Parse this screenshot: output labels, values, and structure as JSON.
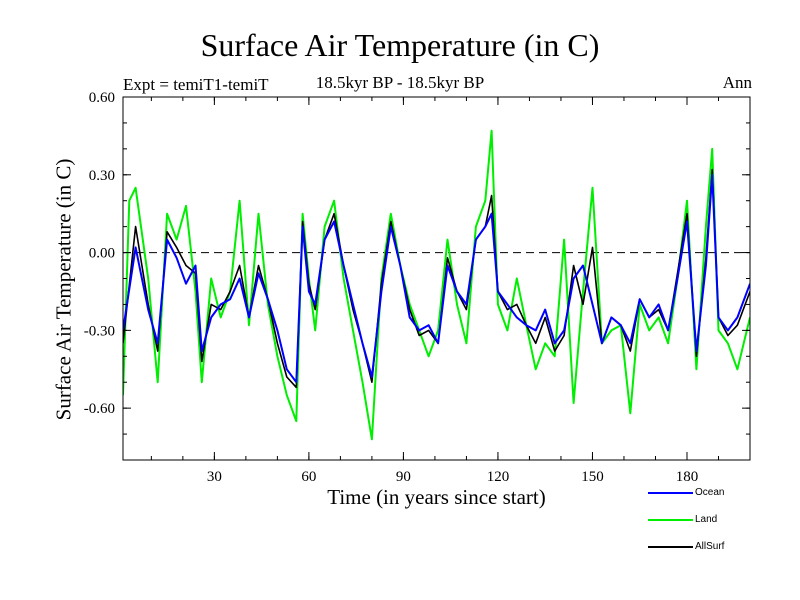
{
  "chart_data": {
    "type": "line",
    "title": "Surface Air Temperature (in C)",
    "subtitle": "18.5kyr BP - 18.5kyr BP",
    "expt_label": "Expt = temiT1-temiT",
    "season_label": "Ann",
    "xlabel": "Time (in years since start)",
    "ylabel": "Surface Air Temperature (in C)",
    "xlim": [
      1,
      200
    ],
    "ylim": [
      -0.8,
      0.6
    ],
    "xticks": [
      30,
      60,
      90,
      120,
      150,
      180
    ],
    "xtick_labels": [
      "30",
      "60",
      "90",
      "120",
      "150",
      "180"
    ],
    "yticks": [
      0.6,
      0.3,
      0.0,
      -0.3,
      -0.6
    ],
    "ytick_labels": [
      "0.60",
      "0.30",
      "0.00",
      "-0.30",
      "-0.60"
    ],
    "zero_line": 0.0,
    "series": [
      {
        "name": "Ocean",
        "color": "#0000ff",
        "x": [
          1,
          5,
          9,
          12,
          15,
          18,
          21,
          24,
          26,
          29,
          32,
          35,
          38,
          41,
          44,
          47,
          50,
          53,
          56,
          58,
          60,
          62,
          65,
          68,
          71,
          74,
          77,
          80,
          83,
          86,
          89,
          92,
          95,
          98,
          101,
          104,
          107,
          110,
          113,
          116,
          118,
          120,
          123,
          126,
          129,
          132,
          135,
          138,
          141,
          144,
          147,
          150,
          153,
          156,
          159,
          162,
          165,
          168,
          171,
          174,
          177,
          180,
          183,
          186,
          188,
          190,
          193,
          196,
          200
        ],
        "values": [
          -0.3,
          0.02,
          -0.22,
          -0.35,
          0.05,
          -0.02,
          -0.12,
          -0.05,
          -0.38,
          -0.25,
          -0.2,
          -0.18,
          -0.1,
          -0.25,
          -0.08,
          -0.18,
          -0.3,
          -0.45,
          -0.5,
          0.1,
          -0.15,
          -0.2,
          0.05,
          0.12,
          -0.05,
          -0.2,
          -0.35,
          -0.48,
          -0.15,
          0.1,
          -0.05,
          -0.25,
          -0.3,
          -0.28,
          -0.35,
          -0.05,
          -0.15,
          -0.2,
          0.05,
          0.1,
          0.15,
          -0.15,
          -0.2,
          -0.25,
          -0.28,
          -0.3,
          -0.22,
          -0.35,
          -0.3,
          -0.1,
          -0.05,
          -0.2,
          -0.35,
          -0.25,
          -0.28,
          -0.35,
          -0.18,
          -0.25,
          -0.2,
          -0.3,
          -0.1,
          0.12,
          -0.38,
          -0.05,
          0.3,
          -0.25,
          -0.3,
          -0.25,
          -0.12
        ]
      },
      {
        "name": "Land",
        "color": "#00ee00",
        "x": [
          1,
          3,
          5,
          9,
          12,
          15,
          18,
          21,
          24,
          26,
          29,
          32,
          35,
          38,
          41,
          44,
          47,
          50,
          53,
          56,
          58,
          60,
          62,
          65,
          68,
          71,
          74,
          77,
          80,
          83,
          86,
          89,
          92,
          95,
          98,
          101,
          104,
          107,
          110,
          113,
          116,
          118,
          120,
          123,
          126,
          129,
          132,
          135,
          138,
          141,
          144,
          147,
          150,
          153,
          156,
          159,
          162,
          165,
          168,
          171,
          174,
          177,
          180,
          183,
          186,
          188,
          190,
          193,
          196,
          200
        ],
        "values": [
          -0.55,
          0.2,
          0.25,
          -0.1,
          -0.5,
          0.15,
          0.05,
          0.18,
          -0.15,
          -0.5,
          -0.1,
          -0.25,
          -0.15,
          0.2,
          -0.28,
          0.15,
          -0.2,
          -0.4,
          -0.55,
          -0.65,
          0.15,
          -0.1,
          -0.3,
          0.1,
          0.2,
          -0.1,
          -0.3,
          -0.5,
          -0.72,
          -0.1,
          0.15,
          -0.05,
          -0.2,
          -0.3,
          -0.4,
          -0.3,
          0.05,
          -0.2,
          -0.35,
          0.1,
          0.2,
          0.47,
          -0.2,
          -0.3,
          -0.1,
          -0.28,
          -0.45,
          -0.35,
          -0.4,
          0.05,
          -0.58,
          -0.15,
          0.25,
          -0.35,
          -0.3,
          -0.28,
          -0.62,
          -0.2,
          -0.3,
          -0.25,
          -0.35,
          -0.1,
          0.2,
          -0.45,
          0.1,
          0.4,
          -0.3,
          -0.35,
          -0.45,
          -0.25
        ]
      },
      {
        "name": "AllSurf",
        "color": "#000000",
        "x": [
          1,
          5,
          9,
          12,
          15,
          18,
          21,
          24,
          26,
          29,
          32,
          35,
          38,
          41,
          44,
          47,
          50,
          53,
          56,
          58,
          60,
          62,
          65,
          68,
          71,
          74,
          77,
          80,
          83,
          86,
          89,
          92,
          95,
          98,
          101,
          104,
          107,
          110,
          113,
          116,
          118,
          120,
          123,
          126,
          129,
          132,
          135,
          138,
          141,
          144,
          147,
          150,
          153,
          156,
          159,
          162,
          165,
          168,
          171,
          174,
          177,
          180,
          183,
          186,
          188,
          190,
          193,
          196,
          200
        ],
        "values": [
          -0.35,
          0.1,
          -0.2,
          -0.38,
          0.08,
          0.02,
          -0.05,
          -0.08,
          -0.42,
          -0.2,
          -0.22,
          -0.15,
          -0.05,
          -0.25,
          -0.05,
          -0.18,
          -0.35,
          -0.48,
          -0.52,
          0.12,
          -0.12,
          -0.22,
          0.05,
          0.15,
          -0.05,
          -0.22,
          -0.35,
          -0.5,
          -0.12,
          0.12,
          -0.05,
          -0.22,
          -0.32,
          -0.3,
          -0.35,
          -0.02,
          -0.15,
          -0.22,
          0.05,
          0.1,
          0.22,
          -0.15,
          -0.22,
          -0.2,
          -0.28,
          -0.35,
          -0.25,
          -0.38,
          -0.32,
          -0.05,
          -0.2,
          0.02,
          -0.35,
          -0.25,
          -0.28,
          -0.38,
          -0.18,
          -0.25,
          -0.22,
          -0.3,
          -0.08,
          0.15,
          -0.4,
          -0.02,
          0.32,
          -0.25,
          -0.32,
          -0.28,
          -0.15
        ]
      }
    ]
  }
}
